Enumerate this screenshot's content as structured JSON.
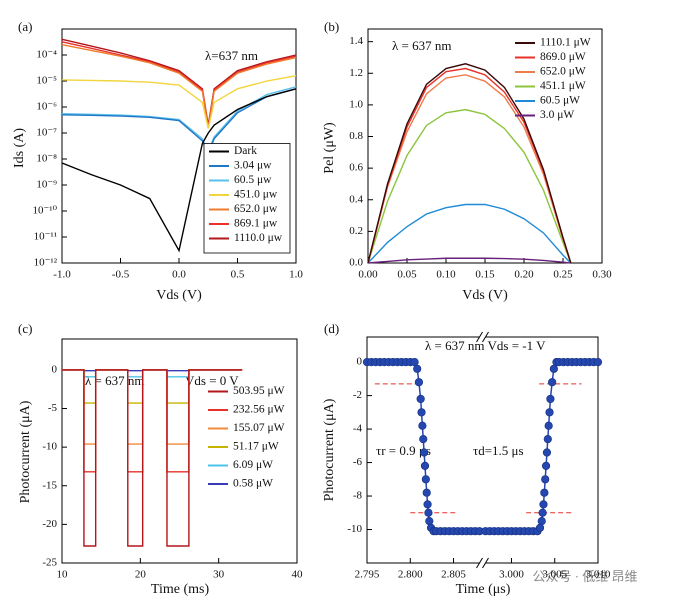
{
  "chart_data": [
    {
      "type": "line",
      "panel_label": "(a)",
      "x_label": "Vds (V)",
      "y_label": "Ids (A)",
      "annotations": [
        "λ=637 nm"
      ],
      "log_y": true,
      "legend": "lower right",
      "legend_frame": true,
      "xlim": [
        -1,
        1
      ],
      "xticks": [
        {
          "value": -1,
          "label": "-1.0"
        },
        -0.5,
        {
          "value": 0,
          "label": "0.0"
        },
        0.5,
        {
          "value": 1,
          "label": "1.0"
        }
      ],
      "ylim": [
        1e-12,
        0.001
      ],
      "yticks": [
        {
          "value": 1e-12,
          "label": "10⁻¹²"
        },
        {
          "value": 1e-11,
          "label": "10⁻¹¹"
        },
        {
          "value": 1e-10,
          "label": "10⁻¹⁰"
        },
        {
          "value": 1e-09,
          "label": "10⁻⁹"
        },
        {
          "value": 1e-08,
          "label": "10⁻⁸"
        },
        {
          "value": 1e-07,
          "label": "10⁻⁷"
        },
        {
          "value": 1e-06,
          "label": "10⁻⁶"
        },
        {
          "value": 1e-05,
          "label": "10⁻⁵"
        },
        {
          "value": 0.0001,
          "label": "10⁻⁴"
        }
      ],
      "x": [
        -1,
        -0.75,
        -0.5,
        -0.25,
        0,
        0.2,
        0.25,
        0.3,
        0.5,
        0.75,
        1
      ],
      "series": [
        {
          "name": "Dark",
          "color": "#000000",
          "values": [
            7e-09,
            2.5e-09,
            1e-09,
            3e-10,
            3e-12,
            4e-08,
            1e-07,
            2e-07,
            8e-07,
            2.5e-06,
            5e-06
          ]
        },
        {
          "name": "3.04 μw",
          "color": "#1f77c8",
          "values": [
            5e-07,
            4.8e-07,
            4.5e-07,
            4e-07,
            3e-07,
            5e-08,
            1.5e-08,
            6e-08,
            6e-07,
            2.5e-06,
            5e-06
          ]
        },
        {
          "name": "60.5 μw",
          "color": "#5bc0eb",
          "values": [
            5.5e-07,
            5.2e-07,
            4.9e-07,
            4.3e-07,
            3.3e-07,
            6e-08,
            2e-08,
            7e-08,
            7e-07,
            3e-06,
            6e-06
          ]
        },
        {
          "name": "451.0 μw",
          "color": "#f2d43c",
          "values": [
            1.1e-05,
            1.05e-05,
            1e-05,
            9e-06,
            7e-06,
            1.5e-06,
            1.5e-07,
            1.5e-06,
            5e-06,
            1e-05,
            1.6e-05
          ]
        },
        {
          "name": "652.0 μw",
          "color": "#f07b2c",
          "values": [
            0.00025,
            0.00015,
            9e-05,
            5e-05,
            2e-05,
            4e-06,
            1.5e-07,
            4e-06,
            2e-05,
            4.5e-05,
            8e-05
          ]
        },
        {
          "name": "869.1 μw",
          "color": "#e8312a",
          "values": [
            0.00032,
            0.00018,
            0.0001,
            5.5e-05,
            2.2e-05,
            4.5e-06,
            1.7e-07,
            4.5e-06,
            2.2e-05,
            5e-05,
            9e-05
          ]
        },
        {
          "name": "1110.0 μw",
          "color": "#b3161b",
          "values": [
            0.0004,
            0.00022,
            0.00012,
            6e-05,
            2.5e-05,
            5e-06,
            2e-07,
            5e-06,
            2.5e-05,
            5.5e-05,
            0.0001
          ]
        }
      ]
    },
    {
      "type": "line",
      "panel_label": "(b)",
      "x_label": "Vds (V)",
      "y_label": "Pel (μW)",
      "annotations": [
        "λ = 637 nm"
      ],
      "legend": "upper right",
      "legend_frame": false,
      "xlim": [
        0,
        0.3
      ],
      "xticks": [
        {
          "value": 0,
          "label": "0.00"
        },
        0.05,
        {
          "value": 0.1,
          "label": "0.10"
        },
        0.15,
        {
          "value": 0.2,
          "label": "0.20"
        },
        0.25,
        {
          "value": 0.3,
          "label": "0.30"
        }
      ],
      "ylim": [
        0,
        1.48
      ],
      "yticks": [
        {
          "value": 0,
          "label": "0.0"
        },
        0.2,
        0.4,
        0.6,
        0.8,
        {
          "value": 1,
          "label": "1.0"
        },
        1.2,
        1.4
      ],
      "x": [
        0,
        0.025,
        0.05,
        0.075,
        0.1,
        0.125,
        0.15,
        0.175,
        0.2,
        0.225,
        0.25,
        0.26
      ],
      "series": [
        {
          "name": "1110.1 μW",
          "color": "#3a0a0a",
          "values": [
            0,
            0.5,
            0.88,
            1.13,
            1.23,
            1.26,
            1.22,
            1.11,
            0.91,
            0.59,
            0.16,
            0
          ]
        },
        {
          "name": "869.0 μW",
          "color": "#e8312a",
          "values": [
            0,
            0.49,
            0.86,
            1.11,
            1.21,
            1.23,
            1.19,
            1.08,
            0.89,
            0.58,
            0.16,
            0
          ]
        },
        {
          "name": "652.0 μW",
          "color": "#f07b4c",
          "values": [
            0,
            0.48,
            0.83,
            1.07,
            1.17,
            1.19,
            1.15,
            1.05,
            0.86,
            0.56,
            0.15,
            0
          ]
        },
        {
          "name": "451.1 μW",
          "color": "#8cc43c",
          "values": [
            0,
            0.39,
            0.68,
            0.87,
            0.95,
            0.97,
            0.94,
            0.85,
            0.7,
            0.46,
            0.13,
            0
          ]
        },
        {
          "name": "60.5 μW",
          "color": "#1f8ad6",
          "values": [
            0,
            0.13,
            0.23,
            0.31,
            0.35,
            0.37,
            0.37,
            0.34,
            0.28,
            0.19,
            0.05,
            0
          ]
        },
        {
          "name": "3.0 μW",
          "color": "#6a1f7a",
          "values": [
            0,
            0.01,
            0.02,
            0.025,
            0.03,
            0.03,
            0.03,
            0.028,
            0.024,
            0.016,
            0.005,
            0
          ]
        }
      ]
    },
    {
      "type": "line",
      "panel_label": "(c)",
      "x_label": "Time (ms)",
      "y_label": "Photocurrent (μA)",
      "annotations": [
        "λ = 637 nm",
        "Vds = 0 V"
      ],
      "legend": "center right",
      "legend_frame": false,
      "xlim": [
        10,
        40
      ],
      "xticks": [
        10,
        20,
        30,
        40
      ],
      "ylim": [
        -25,
        4
      ],
      "yticks": [
        0,
        -5,
        -10,
        -15,
        -20,
        -25
      ],
      "x": [
        10,
        12.8,
        12.8,
        14.3,
        14.3,
        18.4,
        18.4,
        20.3,
        20.3,
        23.4,
        23.4,
        26.2,
        26.2,
        33
      ],
      "series": [
        {
          "name": "503.95 μW",
          "color": "#b3161b",
          "values": [
            0,
            0,
            -22.8,
            -22.8,
            0,
            0,
            -22.8,
            -22.8,
            0,
            0,
            -22.8,
            -22.8,
            0,
            0
          ]
        },
        {
          "name": "232.56 μW",
          "color": "#e8312a",
          "values": [
            0,
            0,
            -13.2,
            -13.2,
            0,
            0,
            -13.2,
            -13.2,
            0,
            0,
            -13.2,
            -13.2,
            0,
            0
          ]
        },
        {
          "name": "155.07 μW",
          "color": "#f08a3c",
          "values": [
            0,
            0,
            -9.6,
            -9.6,
            0,
            0,
            -9.6,
            -9.6,
            0,
            0,
            -9.6,
            -9.6,
            0,
            0
          ]
        },
        {
          "name": "51.17 μW",
          "color": "#c8b400",
          "values": [
            0,
            0,
            -4.3,
            -4.3,
            0,
            0,
            -4.3,
            -4.3,
            0,
            0,
            -4.3,
            -4.3,
            0,
            0
          ]
        },
        {
          "name": "6.09 μW",
          "color": "#4cc3e8",
          "values": [
            0,
            0,
            -0.9,
            -0.9,
            0,
            0,
            -0.9,
            -0.9,
            0,
            0,
            -0.9,
            -0.9,
            0,
            0
          ]
        },
        {
          "name": "0.58 μW",
          "color": "#3a3ab8",
          "values": [
            0,
            0,
            -0.1,
            -0.1,
            0,
            0,
            -0.1,
            -0.1,
            0,
            0,
            -0.1,
            -0.1,
            0,
            0
          ]
        }
      ]
    },
    {
      "type": "scatter",
      "panel_label": "(d)",
      "x_label": "Time (μs)",
      "y_label": "Photocurrent (μA)",
      "annotations": [
        "λ = 637 nm  Vds = -1 V",
        "τr = 0.9 μs",
        "τd=1.5 μs"
      ],
      "xlim": [
        2.795,
        3.01
      ],
      "xbreak": [
        2.808,
        2.997
      ],
      "xticks": [
        2.795,
        {
          "value": 2.8,
          "label": "2.800"
        },
        2.805,
        {
          "value": 3,
          "label": "3.000"
        },
        3.005,
        {
          "value": 3.01,
          "label": "3.010"
        }
      ],
      "ylim": [
        -12,
        1.5
      ],
      "yticks": [
        0,
        -2,
        -4,
        -6,
        -8,
        -10
      ],
      "hlines": [
        {
          "y": -1.3,
          "x": [
            2.7959,
            2.8009
          ],
          "color": "#e8312a"
        },
        {
          "y": -9,
          "x": [
            2.8,
            2.8052
          ],
          "color": "#e8312a"
        },
        {
          "y": -1.3,
          "x": [
            3.0032,
            3.0081
          ],
          "color": "#e8312a"
        },
        {
          "y": -9,
          "x": [
            3.0017,
            3.007
          ],
          "color": "#e8312a"
        }
      ],
      "series": [
        {
          "color": "#2447b0",
          "x": [
            2.795,
            2.7955,
            2.796,
            2.7965,
            2.797,
            2.7975,
            2.798,
            2.7985,
            2.799,
            2.7995,
            2.8,
            2.8005,
            2.8008,
            2.801,
            2.8012,
            2.8013,
            2.8014,
            2.8015,
            2.8016,
            2.8017,
            2.8018,
            2.8019,
            2.802,
            2.8021,
            2.8022,
            2.8024,
            2.8027,
            2.803,
            2.8035,
            2.804,
            2.8045,
            2.805,
            2.8055,
            2.806,
            2.8065,
            2.807,
            2.8075,
            2.808,
            2.997,
            2.9975,
            2.998,
            2.9985,
            2.999,
            2.9995,
            3,
            3.0005,
            3.001,
            3.0015,
            3.002,
            3.0025,
            3.003,
            3.0033,
            3.0035,
            3.0036,
            3.0037,
            3.0038,
            3.0039,
            3.004,
            3.0041,
            3.0042,
            3.0043,
            3.0044,
            3.0045,
            3.0047,
            3.0049,
            3.0052,
            3.0055,
            3.006,
            3.0065,
            3.007,
            3.0075,
            3.008,
            3.0085,
            3.009,
            3.0095,
            3.01
          ],
          "values": [
            0,
            0,
            0,
            0,
            0,
            0,
            0,
            0,
            0,
            0,
            0,
            0,
            -0.4,
            -1.2,
            -2.2,
            -3,
            -3.8,
            -4.6,
            -5.4,
            -6.2,
            -7,
            -7.8,
            -8.5,
            -9,
            -9.5,
            -9.9,
            -10.1,
            -10.1,
            -10.1,
            -10.1,
            -10.1,
            -10.1,
            -10.1,
            -10.1,
            -10.1,
            -10.1,
            -10.1,
            -10.1,
            -10.1,
            -10.1,
            -10.1,
            -10.1,
            -10.1,
            -10.1,
            -10.1,
            -10.1,
            -10.1,
            -10.1,
            -10.1,
            -10.1,
            -10.1,
            -9.9,
            -9.5,
            -9,
            -8.5,
            -7.8,
            -7,
            -6.2,
            -5.4,
            -4.6,
            -3.8,
            -3,
            -2.2,
            -1.2,
            -0.4,
            0,
            0,
            0,
            0,
            0,
            0,
            0,
            0,
            0,
            0,
            0
          ]
        }
      ]
    }
  ],
  "watermark": "公众号 · 低维 昂维"
}
